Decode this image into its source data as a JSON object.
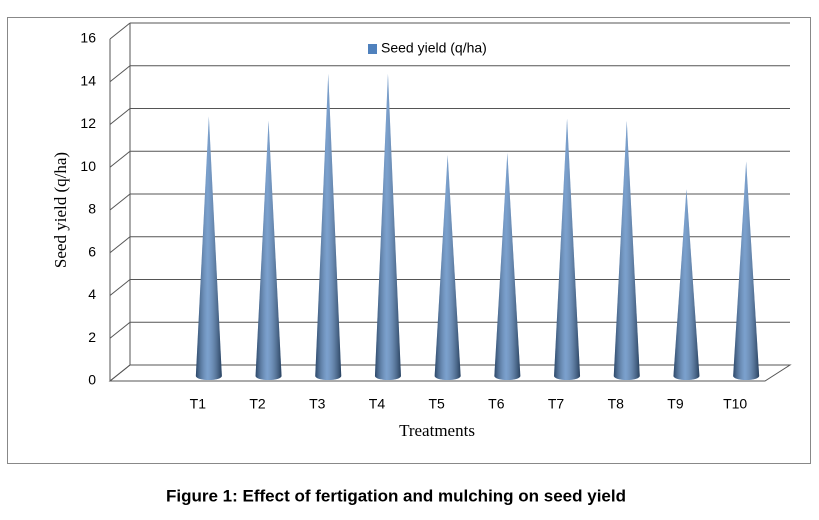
{
  "chart_data": {
    "type": "bar",
    "title": "Figure 1: Effect of fertigation and mulching on seed yield",
    "x_label": "Treatments",
    "y_label": "Seed yield (q/ha)",
    "categories": [
      "T1",
      "T2",
      "T3",
      "T4",
      "T5",
      "T6",
      "T7",
      "T8",
      "T9",
      "T10"
    ],
    "series": [
      {
        "name": "Seed yield (q/ha)",
        "color": "#4f81bd",
        "values": [
          12.0,
          11.8,
          14.0,
          14.0,
          10.2,
          10.3,
          11.9,
          11.8,
          8.6,
          9.9
        ]
      }
    ],
    "ylim": [
      0,
      16
    ],
    "yticks": [
      0,
      2,
      4,
      6,
      8,
      10,
      12,
      14,
      16
    ],
    "grid": true,
    "legend": "top"
  }
}
